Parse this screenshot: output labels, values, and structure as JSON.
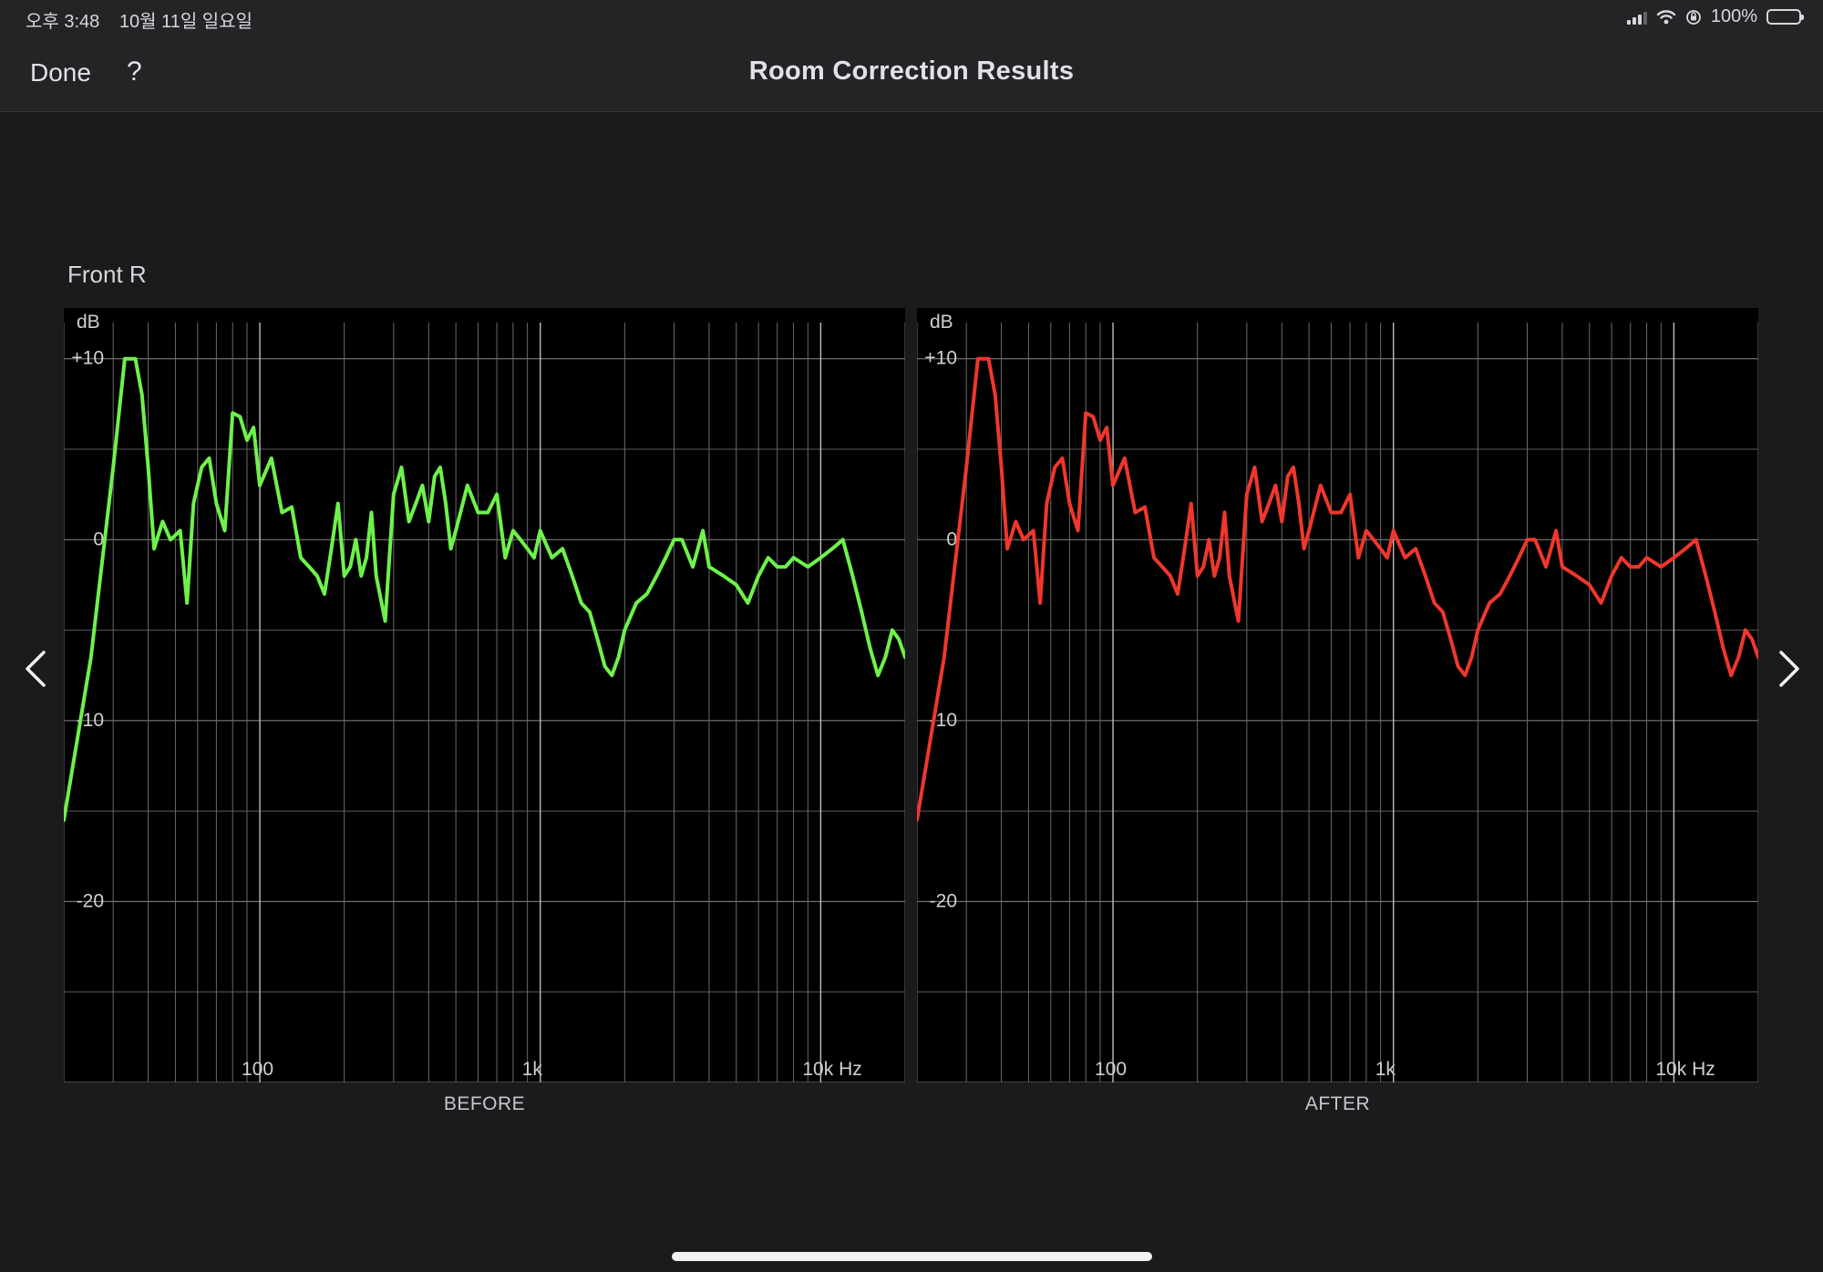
{
  "status_bar": {
    "time": "오후 3:48",
    "date": "10월 11일 일요일",
    "battery_text": "100%",
    "icons": [
      "signal-icon",
      "wifi-icon",
      "orientation-lock-icon",
      "battery-icon"
    ]
  },
  "nav": {
    "done_label": "Done",
    "help_label": "?",
    "title": "Room Correction Results"
  },
  "channel_label": "Front R",
  "navigation": {
    "prev_icon": "chevron-left-icon",
    "next_icon": "chevron-right-icon"
  },
  "chart_data": [
    {
      "type": "line",
      "name": "BEFORE",
      "caption": "BEFORE",
      "color": "#6ef24a",
      "x_scale": "log",
      "xlim": [
        20,
        20000
      ],
      "ylim": [
        -30,
        12
      ],
      "ylabel": "dB",
      "y_ticks": [
        {
          "value": 10,
          "label": "+10"
        },
        {
          "value": 0,
          "label": "0"
        },
        {
          "value": -10,
          "label": "-10"
        },
        {
          "value": -20,
          "label": "-20"
        }
      ],
      "x_ticks": [
        {
          "value": 100,
          "label": "100"
        },
        {
          "value": 1000,
          "label": "1k"
        },
        {
          "value": 10000,
          "label": "10k Hz"
        }
      ],
      "x": [
        20,
        25,
        30,
        33,
        36,
        38,
        40,
        42,
        45,
        48,
        52,
        55,
        58,
        62,
        66,
        70,
        75,
        80,
        85,
        90,
        95,
        100,
        110,
        120,
        130,
        140,
        150,
        160,
        170,
        180,
        190,
        200,
        210,
        220,
        230,
        240,
        250,
        260,
        280,
        300,
        320,
        340,
        360,
        380,
        400,
        420,
        440,
        460,
        480,
        500,
        550,
        600,
        650,
        700,
        750,
        800,
        850,
        900,
        950,
        1000,
        1100,
        1200,
        1300,
        1400,
        1500,
        1600,
        1700,
        1800,
        1900,
        2000,
        2200,
        2400,
        2600,
        2800,
        3000,
        3200,
        3500,
        3800,
        4000,
        4500,
        5000,
        5500,
        6000,
        6500,
        7000,
        7500,
        8000,
        9000,
        10000,
        11000,
        12000,
        13000,
        14000,
        15000,
        16000,
        17000,
        18000,
        19000,
        20000
      ],
      "y": [
        -15.5,
        -6.5,
        4,
        10,
        10,
        8,
        4,
        -0.5,
        1,
        0,
        0.5,
        -3.5,
        2,
        4,
        4.5,
        2,
        0.5,
        7,
        6.8,
        5.5,
        6.2,
        3,
        4.5,
        1.5,
        1.8,
        -1,
        -1.5,
        -2,
        -3,
        -0.5,
        2,
        -2,
        -1.5,
        0,
        -2,
        -1,
        1.5,
        -2,
        -4.5,
        2.5,
        4,
        1,
        2,
        3,
        1,
        3.5,
        4,
        2,
        -0.5,
        0.5,
        3,
        1.5,
        1.5,
        2.5,
        -1,
        0.5,
        0,
        -0.5,
        -1,
        0.5,
        -1,
        -0.5,
        -2,
        -3.5,
        -4,
        -5.5,
        -7,
        -7.5,
        -6.5,
        -5,
        -3.5,
        -3,
        -2,
        -1,
        0,
        0,
        -1.5,
        0.5,
        -1.5,
        -2,
        -2.5,
        -3.5,
        -2,
        -1,
        -1.5,
        -1.5,
        -1,
        -1.5,
        -1,
        -0.5,
        0,
        -2,
        -4,
        -6,
        -7.5,
        -6.5,
        -5,
        -5.5,
        -6.5
      ]
    },
    {
      "type": "line",
      "name": "AFTER",
      "caption": "AFTER",
      "color": "#f0372c",
      "x_scale": "log",
      "xlim": [
        20,
        20000
      ],
      "ylim": [
        -30,
        12
      ],
      "ylabel": "dB",
      "y_ticks": [
        {
          "value": 10,
          "label": "+10"
        },
        {
          "value": 0,
          "label": "0"
        },
        {
          "value": -10,
          "label": "-10"
        },
        {
          "value": -20,
          "label": "-20"
        }
      ],
      "x_ticks": [
        {
          "value": 100,
          "label": "100"
        },
        {
          "value": 1000,
          "label": "1k"
        },
        {
          "value": 10000,
          "label": "10k Hz"
        }
      ],
      "x": [
        20,
        25,
        30,
        33,
        36,
        38,
        40,
        42,
        45,
        48,
        52,
        55,
        58,
        62,
        66,
        70,
        75,
        80,
        85,
        90,
        95,
        100,
        110,
        120,
        130,
        140,
        150,
        160,
        170,
        180,
        190,
        200,
        210,
        220,
        230,
        240,
        250,
        260,
        280,
        300,
        320,
        340,
        360,
        380,
        400,
        420,
        440,
        460,
        480,
        500,
        550,
        600,
        650,
        700,
        750,
        800,
        850,
        900,
        950,
        1000,
        1100,
        1200,
        1300,
        1400,
        1500,
        1600,
        1700,
        1800,
        1900,
        2000,
        2200,
        2400,
        2600,
        2800,
        3000,
        3200,
        3500,
        3800,
        4000,
        4500,
        5000,
        5500,
        6000,
        6500,
        7000,
        7500,
        8000,
        9000,
        10000,
        11000,
        12000,
        13000,
        14000,
        15000,
        16000,
        17000,
        18000,
        19000,
        20000
      ],
      "y": [
        -15.5,
        -6.5,
        4,
        10,
        10,
        8,
        4,
        -0.5,
        1,
        0,
        0.5,
        -3.5,
        2,
        4,
        4.5,
        2,
        0.5,
        7,
        6.8,
        5.5,
        6.2,
        3,
        4.5,
        1.5,
        1.8,
        -1,
        -1.5,
        -2,
        -3,
        -0.5,
        2,
        -2,
        -1.5,
        0,
        -2,
        -1,
        1.5,
        -2,
        -4.5,
        2.5,
        4,
        1,
        2,
        3,
        1,
        3.5,
        4,
        2,
        -0.5,
        0.5,
        3,
        1.5,
        1.5,
        2.5,
        -1,
        0.5,
        0,
        -0.5,
        -1,
        0.5,
        -1,
        -0.5,
        -2,
        -3.5,
        -4,
        -5.5,
        -7,
        -7.5,
        -6.5,
        -5,
        -3.5,
        -3,
        -2,
        -1,
        0,
        0,
        -1.5,
        0.5,
        -1.5,
        -2,
        -2.5,
        -3.5,
        -2,
        -1,
        -1.5,
        -1.5,
        -1,
        -1.5,
        -1,
        -0.5,
        0,
        -2,
        -4,
        -6,
        -7.5,
        -6.5,
        -5,
        -5.5,
        -6.5
      ]
    }
  ]
}
